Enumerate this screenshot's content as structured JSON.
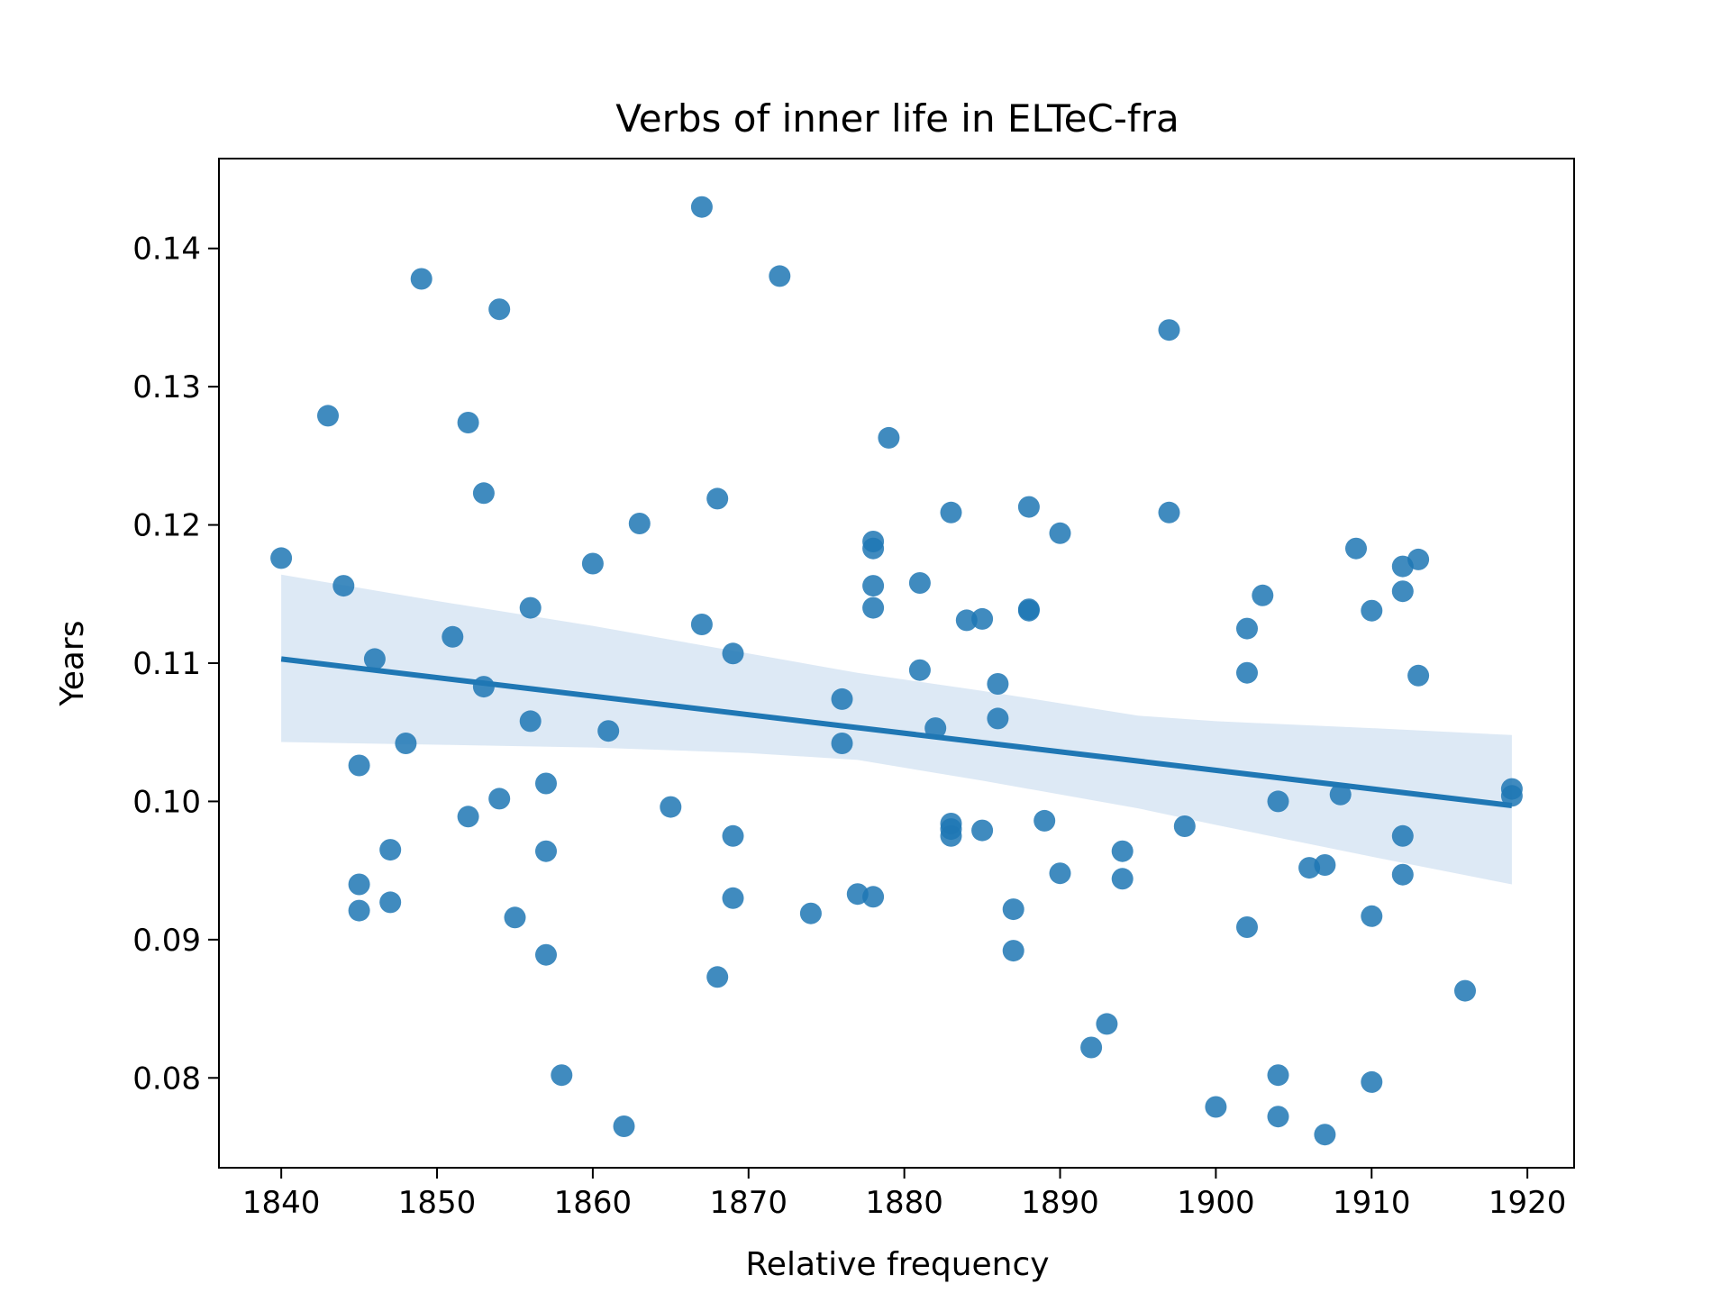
{
  "chart_data": {
    "type": "scatter",
    "title": "Verbs of inner life in ELTeC-fra",
    "xlabel": "Relative frequency",
    "ylabel": "Years",
    "xlim": [
      1836,
      1923
    ],
    "ylim": [
      0.0735,
      0.1465
    ],
    "x_ticks": [
      1840,
      1850,
      1860,
      1870,
      1880,
      1890,
      1900,
      1910,
      1920
    ],
    "y_ticks": [
      0.08,
      0.09,
      0.1,
      0.11,
      0.12,
      0.13,
      0.14
    ],
    "y_tick_labels": [
      "0.08",
      "0.09",
      "0.10",
      "0.11",
      "0.12",
      "0.13",
      "0.14"
    ],
    "grid": false,
    "legend": "none",
    "point_color": "#1f77b4",
    "line_color": "#1f77b4",
    "band_color": "#c6dbef",
    "regression": {
      "x": [
        1840,
        1919
      ],
      "y": [
        0.1103,
        0.0997
      ],
      "ci_band": {
        "x": [
          1840,
          1850,
          1860,
          1870,
          1877,
          1885,
          1895,
          1900,
          1910,
          1919
        ],
        "lower": [
          0.1043,
          0.1041,
          0.1039,
          0.1035,
          0.103,
          0.1015,
          0.0995,
          0.0983,
          0.096,
          0.094
        ],
        "upper": [
          0.1164,
          0.1145,
          0.1127,
          0.1107,
          0.1093,
          0.108,
          0.1062,
          0.1058,
          0.1053,
          0.1048
        ]
      }
    },
    "series": [
      {
        "points": [
          [
            1840,
            0.1176
          ],
          [
            1843,
            0.1279
          ],
          [
            1844,
            0.1156
          ],
          [
            1845,
            0.1026
          ],
          [
            1845,
            0.094
          ],
          [
            1845,
            0.0921
          ],
          [
            1846,
            0.1103
          ],
          [
            1847,
            0.0965
          ],
          [
            1847,
            0.0927
          ],
          [
            1848,
            0.1042
          ],
          [
            1849,
            0.1378
          ],
          [
            1851,
            0.1119
          ],
          [
            1852,
            0.1274
          ],
          [
            1852,
            0.0989
          ],
          [
            1853,
            0.1223
          ],
          [
            1853,
            0.1083
          ],
          [
            1854,
            0.1356
          ],
          [
            1854,
            0.1002
          ],
          [
            1855,
            0.0916
          ],
          [
            1856,
            0.114
          ],
          [
            1856,
            0.1058
          ],
          [
            1857,
            0.1013
          ],
          [
            1857,
            0.0964
          ],
          [
            1857,
            0.0889
          ],
          [
            1858,
            0.0802
          ],
          [
            1860,
            0.1172
          ],
          [
            1861,
            0.1051
          ],
          [
            1862,
            0.0765
          ],
          [
            1863,
            0.1201
          ],
          [
            1865,
            0.0996
          ],
          [
            1867,
            0.143
          ],
          [
            1867,
            0.1128
          ],
          [
            1868,
            0.1219
          ],
          [
            1868,
            0.0873
          ],
          [
            1869,
            0.1107
          ],
          [
            1869,
            0.0975
          ],
          [
            1869,
            0.093
          ],
          [
            1872,
            0.138
          ],
          [
            1874,
            0.0919
          ],
          [
            1876,
            0.1074
          ],
          [
            1876,
            0.1042
          ],
          [
            1877,
            0.0933
          ],
          [
            1878,
            0.1188
          ],
          [
            1878,
            0.1183
          ],
          [
            1878,
            0.1156
          ],
          [
            1878,
            0.114
          ],
          [
            1878,
            0.0931
          ],
          [
            1879,
            0.1263
          ],
          [
            1881,
            0.1158
          ],
          [
            1881,
            0.1095
          ],
          [
            1882,
            0.1053
          ],
          [
            1883,
            0.1209
          ],
          [
            1883,
            0.0984
          ],
          [
            1883,
            0.098
          ],
          [
            1883,
            0.0975
          ],
          [
            1884,
            0.1131
          ],
          [
            1885,
            0.1132
          ],
          [
            1885,
            0.0979
          ],
          [
            1886,
            0.1085
          ],
          [
            1886,
            0.106
          ],
          [
            1887,
            0.0922
          ],
          [
            1887,
            0.0892
          ],
          [
            1888,
            0.1213
          ],
          [
            1888,
            0.1139
          ],
          [
            1888,
            0.1138
          ],
          [
            1889,
            0.0986
          ],
          [
            1890,
            0.1194
          ],
          [
            1890,
            0.0948
          ],
          [
            1892,
            0.0822
          ],
          [
            1893,
            0.0839
          ],
          [
            1894,
            0.0964
          ],
          [
            1894,
            0.0944
          ],
          [
            1897,
            0.1341
          ],
          [
            1897,
            0.1209
          ],
          [
            1898,
            0.0982
          ],
          [
            1900,
            0.0779
          ],
          [
            1902,
            0.1125
          ],
          [
            1902,
            0.1093
          ],
          [
            1902,
            0.0909
          ],
          [
            1903,
            0.1149
          ],
          [
            1904,
            0.1
          ],
          [
            1904,
            0.0802
          ],
          [
            1904,
            0.0772
          ],
          [
            1906,
            0.0952
          ],
          [
            1907,
            0.0954
          ],
          [
            1907,
            0.0759
          ],
          [
            1908,
            0.1005
          ],
          [
            1909,
            0.1183
          ],
          [
            1910,
            0.1138
          ],
          [
            1910,
            0.0917
          ],
          [
            1910,
            0.0797
          ],
          [
            1912,
            0.117
          ],
          [
            1912,
            0.1152
          ],
          [
            1912,
            0.0975
          ],
          [
            1912,
            0.0947
          ],
          [
            1913,
            0.1175
          ],
          [
            1913,
            0.1091
          ],
          [
            1916,
            0.0863
          ],
          [
            1919,
            0.1009
          ],
          [
            1919,
            0.1004
          ]
        ]
      }
    ]
  }
}
